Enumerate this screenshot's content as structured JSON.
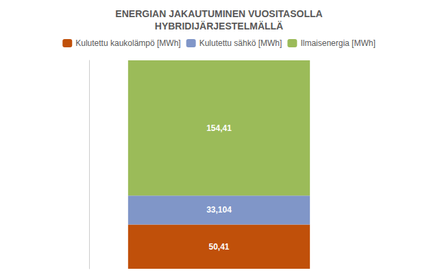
{
  "chart_data": {
    "type": "bar",
    "title": "ENERGIAN JAKAUTUMINEN VUOSITASOLLA\nHYBRIDIJÄRJESTELMÄLLÄ",
    "categories": [
      null
    ],
    "series": [
      {
        "name": "Kulutettu kaukolämpö [MWh]",
        "color": "#C0500A",
        "values": [
          50.41
        ],
        "value_labels": [
          "50,41"
        ]
      },
      {
        "name": "Kulutettu sähkö [MWh]",
        "color": "#8096C8",
        "values": [
          33.104
        ],
        "value_labels": [
          "33,104"
        ]
      },
      {
        "name": "Ilmaisenergia [MWh]",
        "color": "#9BBB59",
        "values": [
          154.41
        ],
        "value_labels": [
          "154,41"
        ]
      }
    ],
    "stacked": true,
    "data_labels": true,
    "tick_labels": false,
    "grid": false,
    "legend": "top",
    "ylim": [
      0,
      238
    ]
  }
}
